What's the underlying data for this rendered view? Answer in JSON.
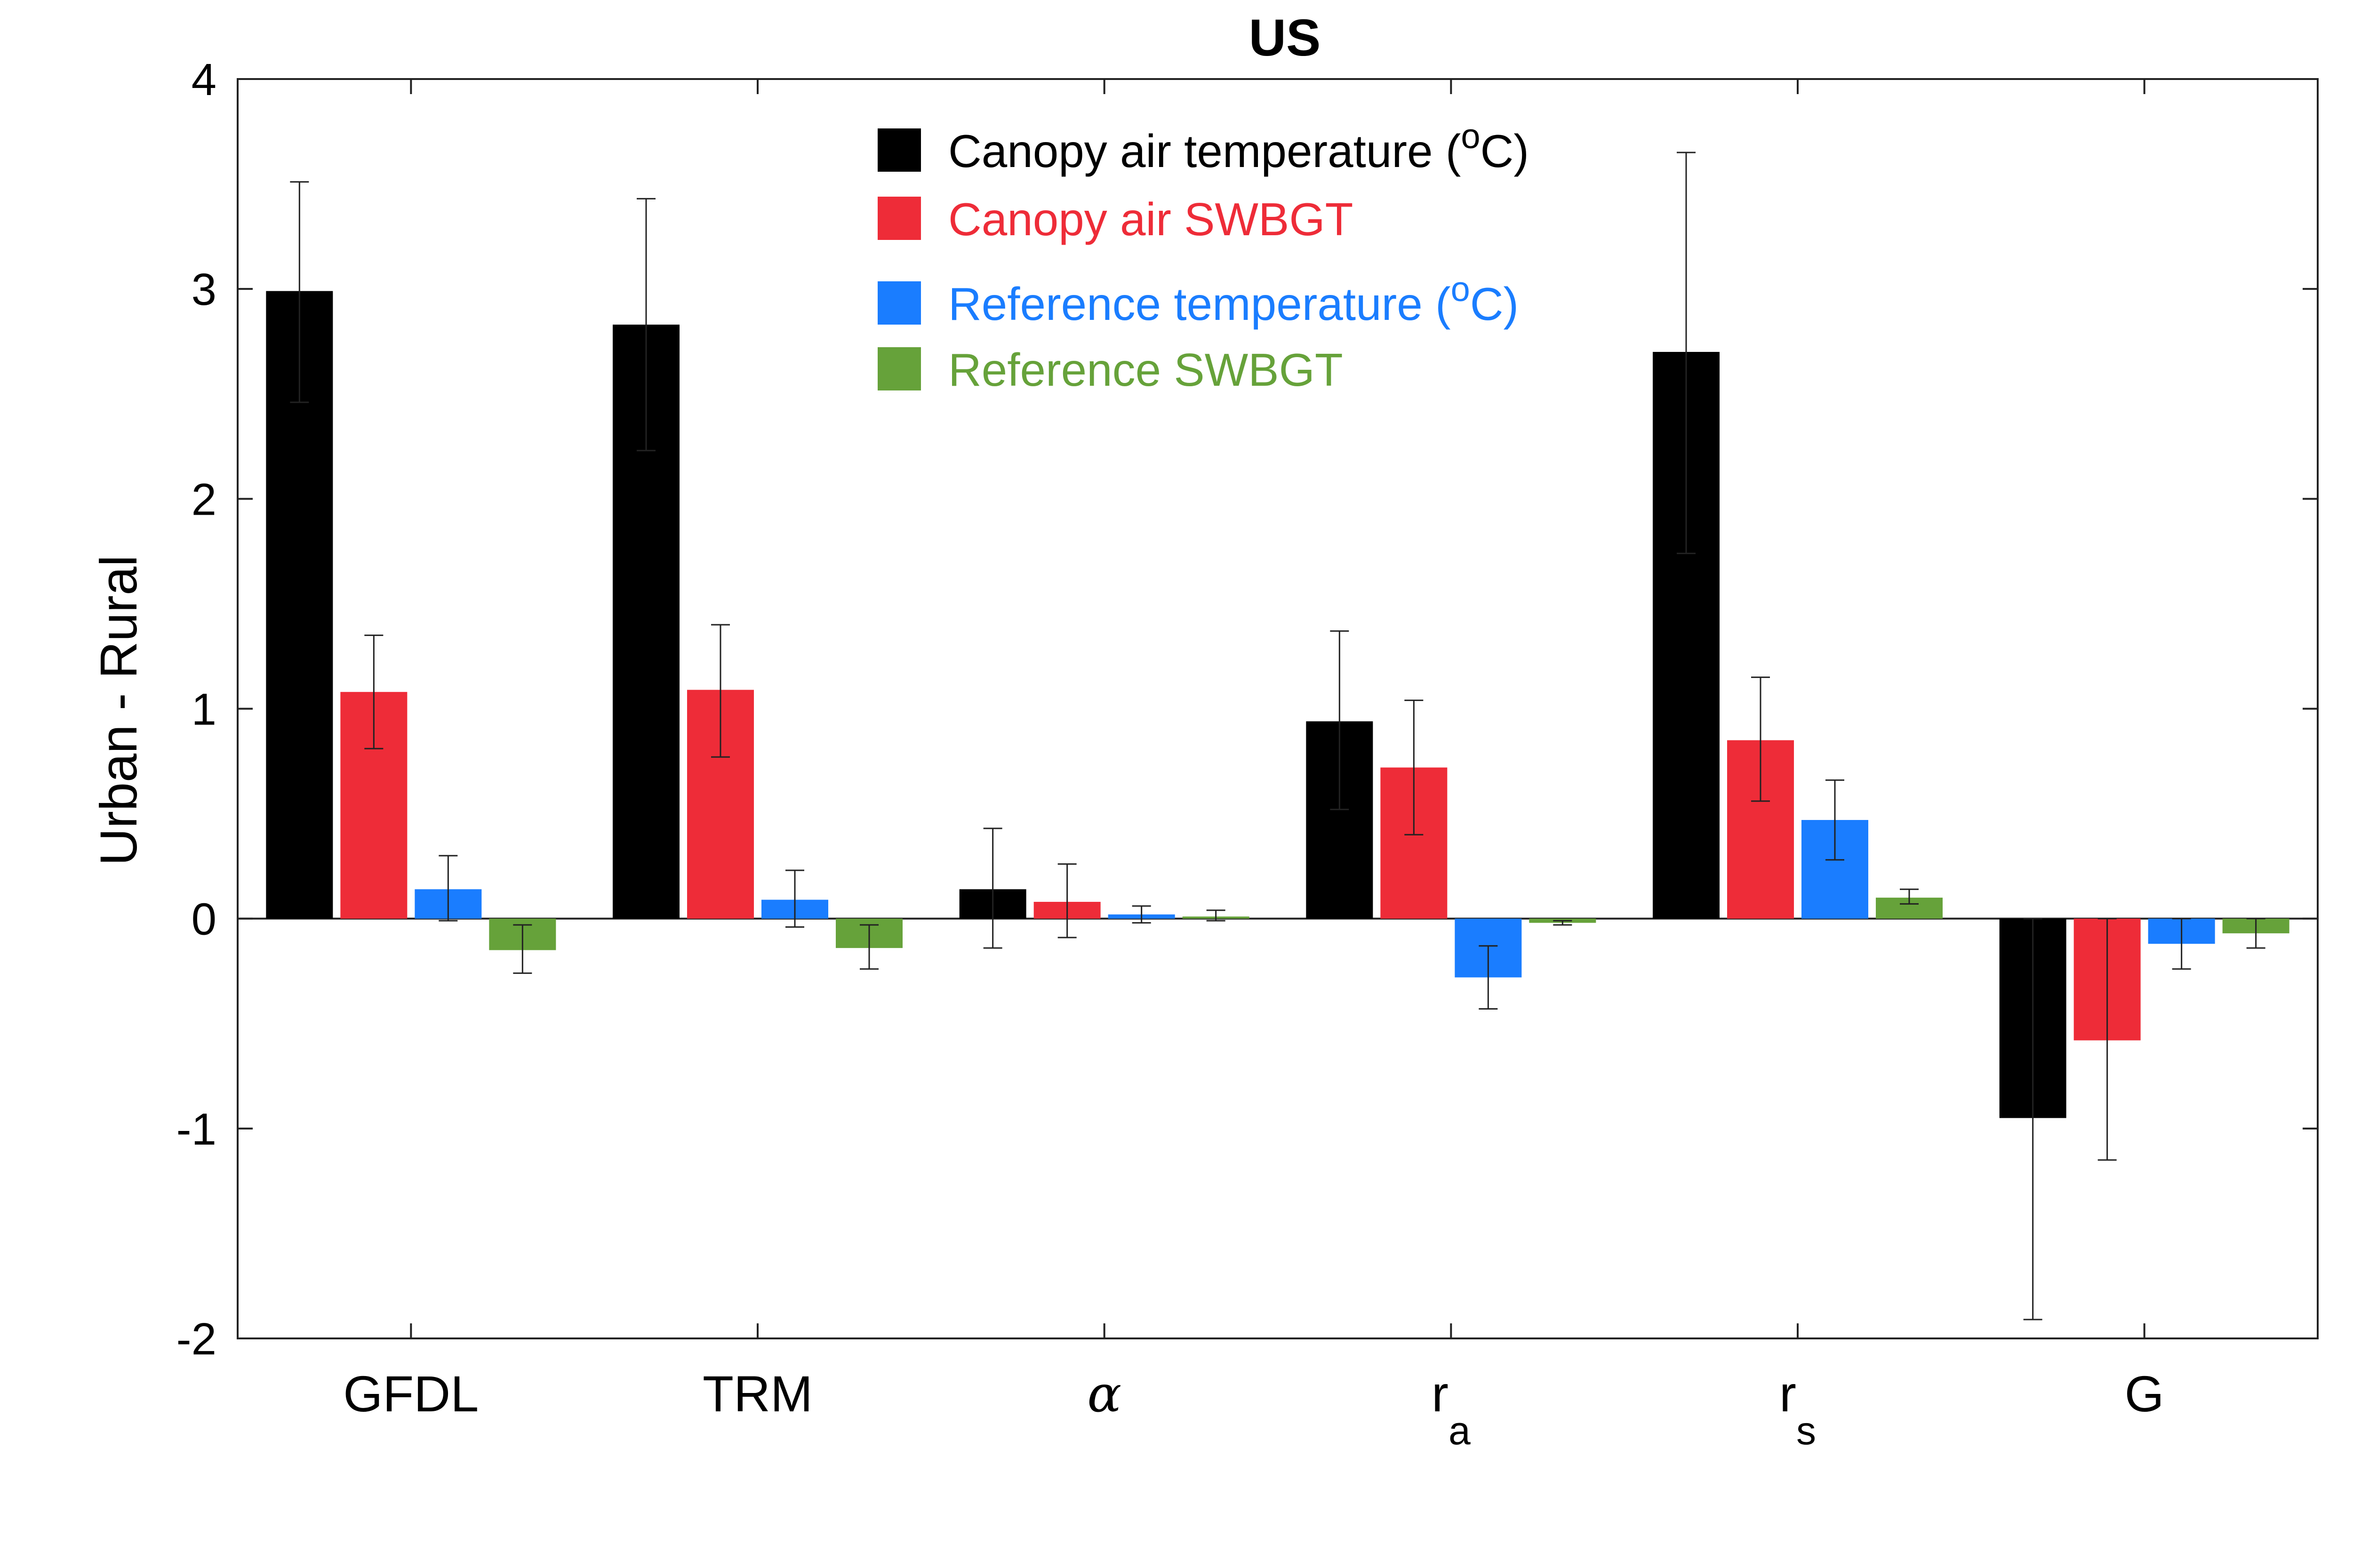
{
  "chart_data": {
    "type": "bar",
    "title": "US",
    "xlabel": "",
    "ylabel": "Urban - Rural",
    "ylim": [
      -2,
      4
    ],
    "yticks": [
      -2,
      -1,
      0,
      1,
      2,
      3,
      4
    ],
    "ytick_labels": [
      "-2",
      "-1",
      "0",
      "1",
      "2",
      "3",
      "4"
    ],
    "categories": [
      {
        "base": "GFDL",
        "sub": "",
        "italic": false
      },
      {
        "base": "TRM",
        "sub": "",
        "italic": false
      },
      {
        "base": "α",
        "sub": "",
        "italic": true
      },
      {
        "base": "r",
        "sub": "a",
        "italic": false
      },
      {
        "base": "r",
        "sub": "s",
        "italic": false
      },
      {
        "base": "G",
        "sub": "",
        "italic": false
      }
    ],
    "series": [
      {
        "name": "Canopy air temperature (°C)",
        "label": {
          "pre": "Canopy air temperature (",
          "sup": "o",
          "post": "C)"
        },
        "color": "#000000",
        "text_color": "#000000",
        "values": [
          2.99,
          2.83,
          0.14,
          0.94,
          2.7,
          -0.95
        ],
        "err_low": [
          2.46,
          2.23,
          -0.14,
          0.52,
          1.74,
          -1.91
        ],
        "err_high": [
          3.51,
          3.43,
          0.43,
          1.37,
          3.65,
          0.0
        ]
      },
      {
        "name": "Canopy air SWBGT",
        "label": {
          "pre": "Canopy air SWBGT",
          "sup": "",
          "post": ""
        },
        "color": "#EE2C38",
        "text_color": "#EE2C38",
        "values": [
          1.08,
          1.09,
          0.08,
          0.72,
          0.85,
          -0.58
        ],
        "err_low": [
          0.81,
          0.77,
          -0.09,
          0.4,
          0.56,
          -1.15
        ],
        "err_high": [
          1.35,
          1.4,
          0.26,
          1.04,
          1.15,
          0.0
        ]
      },
      {
        "name": "Reference temperature (°C)",
        "label": {
          "pre": "Reference temperature (",
          "sup": "o",
          "post": "C)"
        },
        "color": "#1A7DFF",
        "text_color": "#1A7DFF",
        "values": [
          0.14,
          0.09,
          0.02,
          -0.28,
          0.47,
          -0.12
        ],
        "err_low": [
          -0.01,
          -0.04,
          -0.02,
          -0.43,
          0.28,
          -0.24
        ],
        "err_high": [
          0.3,
          0.23,
          0.06,
          -0.13,
          0.66,
          0.0
        ]
      },
      {
        "name": "Reference SWBGT",
        "label": {
          "pre": "Reference SWBGT",
          "sup": "",
          "post": ""
        },
        "color": "#66A23A",
        "text_color": "#66A23A",
        "values": [
          -0.15,
          -0.14,
          0.01,
          -0.02,
          0.1,
          -0.07
        ],
        "err_low": [
          -0.26,
          -0.24,
          -0.01,
          -0.03,
          0.07,
          -0.14
        ],
        "err_high": [
          -0.03,
          -0.03,
          0.04,
          -0.01,
          0.14,
          0.0
        ]
      }
    ],
    "legend": "top-center",
    "grid": false
  }
}
